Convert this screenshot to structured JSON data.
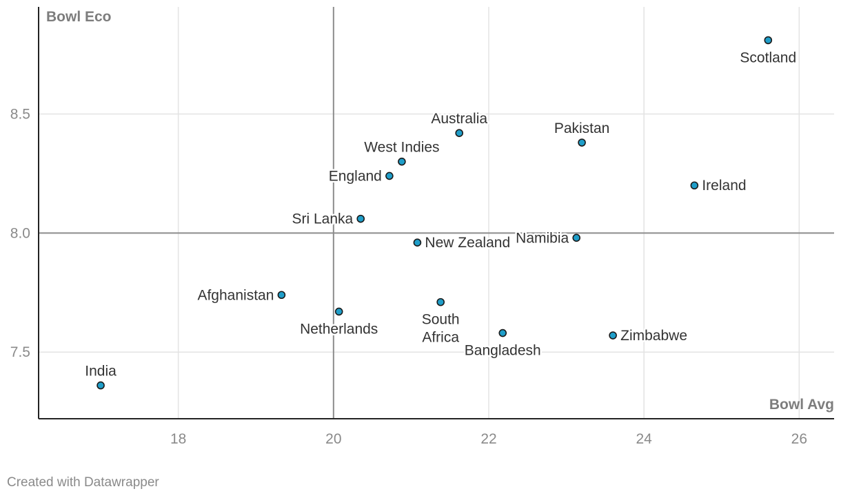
{
  "chart_data": {
    "type": "scatter",
    "xlabel": "Bowl Avg",
    "ylabel": "Bowl Eco",
    "xlim": [
      16.2,
      26.45
    ],
    "ylim": [
      7.22,
      8.95
    ],
    "xticks": [
      18,
      20,
      22,
      24,
      26
    ],
    "yticks": [
      7.5,
      8.0,
      8.5
    ],
    "x_reference": 20,
    "y_reference": 8.0,
    "grid": true,
    "point_color": "#1f9ec9",
    "points": [
      {
        "label": "Scotland",
        "x": 25.6,
        "y": 8.81,
        "pos": "below"
      },
      {
        "label": "Australia",
        "x": 21.62,
        "y": 8.42,
        "pos": "above"
      },
      {
        "label": "Pakistan",
        "x": 23.2,
        "y": 8.38,
        "pos": "above"
      },
      {
        "label": "West Indies",
        "x": 20.88,
        "y": 8.3,
        "pos": "above"
      },
      {
        "label": "England",
        "x": 20.72,
        "y": 8.24,
        "pos": "left"
      },
      {
        "label": "Ireland",
        "x": 24.65,
        "y": 8.2,
        "pos": "right"
      },
      {
        "label": "Sri Lanka",
        "x": 20.35,
        "y": 8.06,
        "pos": "left"
      },
      {
        "label": "Namibia",
        "x": 23.13,
        "y": 7.98,
        "pos": "left"
      },
      {
        "label": "New Zealand",
        "x": 21.08,
        "y": 7.96,
        "pos": "right"
      },
      {
        "label": "Afghanistan",
        "x": 19.33,
        "y": 7.74,
        "pos": "left"
      },
      {
        "label": "South Africa",
        "lines": [
          "South",
          "Africa"
        ],
        "x": 21.38,
        "y": 7.71,
        "pos": "below"
      },
      {
        "label": "Netherlands",
        "x": 20.07,
        "y": 7.67,
        "pos": "below"
      },
      {
        "label": "Bangladesh",
        "x": 22.18,
        "y": 7.58,
        "pos": "below"
      },
      {
        "label": "Zimbabwe",
        "x": 23.6,
        "y": 7.57,
        "pos": "right"
      },
      {
        "label": "India",
        "x": 17.0,
        "y": 7.36,
        "pos": "above"
      }
    ]
  },
  "footer": {
    "credit": "Created with Datawrapper"
  }
}
